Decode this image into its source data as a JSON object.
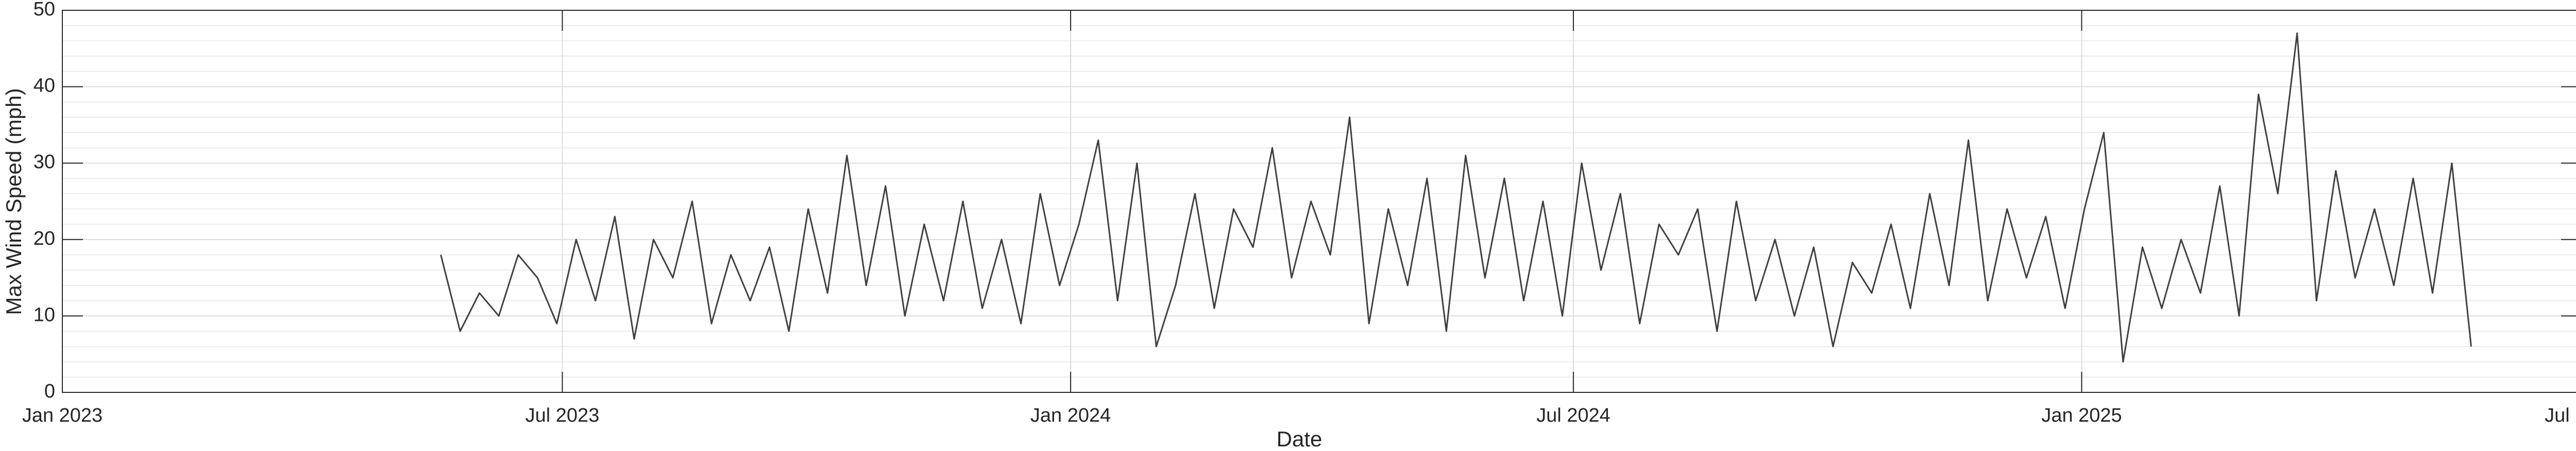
{
  "chart_data": {
    "type": "line",
    "xlabel": "Date",
    "ylabel": "Max Wind Speed (mph)",
    "xlim": [
      "2023-01-01",
      "2025-07-01"
    ],
    "xticks": [
      {
        "value": "2023-01-01",
        "label": "Jan 2023"
      },
      {
        "value": "2023-07-01",
        "label": "Jul 2023"
      },
      {
        "value": "2024-01-01",
        "label": "Jan 2024"
      },
      {
        "value": "2024-07-01",
        "label": "Jul 2024"
      },
      {
        "value": "2025-01-01",
        "label": "Jan 2025"
      },
      {
        "value": "2025-07-01",
        "label": "Jul 2025"
      }
    ],
    "ylim": [
      0,
      50
    ],
    "yticks": [
      0,
      10,
      20,
      30,
      40,
      50
    ],
    "grid": true,
    "minor_grid": true,
    "x": [
      "2023-05-18",
      "2023-05-25",
      "2023-06-01",
      "2023-06-08",
      "2023-06-15",
      "2023-06-22",
      "2023-06-29",
      "2023-07-06",
      "2023-07-13",
      "2023-07-20",
      "2023-07-27",
      "2023-08-03",
      "2023-08-10",
      "2023-08-17",
      "2023-08-24",
      "2023-08-31",
      "2023-09-07",
      "2023-09-14",
      "2023-09-21",
      "2023-09-28",
      "2023-10-05",
      "2023-10-12",
      "2023-10-19",
      "2023-10-26",
      "2023-11-02",
      "2023-11-09",
      "2023-11-16",
      "2023-11-23",
      "2023-11-30",
      "2023-12-07",
      "2023-12-14",
      "2023-12-21",
      "2023-12-28",
      "2024-01-04",
      "2024-01-11",
      "2024-01-18",
      "2024-01-25",
      "2024-02-01",
      "2024-02-08",
      "2024-02-15",
      "2024-02-22",
      "2024-02-29",
      "2024-03-07",
      "2024-03-14",
      "2024-03-21",
      "2024-03-28",
      "2024-04-04",
      "2024-04-11",
      "2024-04-18",
      "2024-04-25",
      "2024-05-02",
      "2024-05-09",
      "2024-05-16",
      "2024-05-23",
      "2024-05-30",
      "2024-06-06",
      "2024-06-13",
      "2024-06-20",
      "2024-06-27",
      "2024-07-04",
      "2024-07-11",
      "2024-07-18",
      "2024-07-25",
      "2024-08-01",
      "2024-08-08",
      "2024-08-15",
      "2024-08-22",
      "2024-08-29",
      "2024-09-05",
      "2024-09-12",
      "2024-09-19",
      "2024-09-26",
      "2024-10-03",
      "2024-10-10",
      "2024-10-17",
      "2024-10-24",
      "2024-10-31",
      "2024-11-07",
      "2024-11-14",
      "2024-11-21",
      "2024-11-28",
      "2024-12-05",
      "2024-12-12",
      "2024-12-19",
      "2024-12-26",
      "2025-01-02",
      "2025-01-09",
      "2025-01-16",
      "2025-01-23",
      "2025-01-30",
      "2025-02-06",
      "2025-02-13",
      "2025-02-20",
      "2025-02-27",
      "2025-03-06",
      "2025-03-13",
      "2025-03-20",
      "2025-03-27",
      "2025-04-03",
      "2025-04-10",
      "2025-04-17",
      "2025-04-24",
      "2025-05-01",
      "2025-05-08",
      "2025-05-15",
      "2025-05-22"
    ],
    "series": [
      {
        "color": "#404040",
        "values": [
          18,
          8,
          13,
          10,
          18,
          15,
          9,
          20,
          12,
          23,
          7,
          20,
          15,
          25,
          9,
          18,
          12,
          19,
          8,
          24,
          13,
          31,
          14,
          27,
          10,
          22,
          12,
          25,
          11,
          20,
          9,
          26,
          14,
          22,
          33,
          12,
          30,
          6,
          14,
          26,
          11,
          24,
          19,
          32,
          15,
          25,
          18,
          36,
          9,
          24,
          14,
          28,
          8,
          31,
          15,
          28,
          12,
          25,
          10,
          30,
          16,
          26,
          9,
          22,
          18,
          24,
          8,
          25,
          12,
          20,
          10,
          19,
          6,
          17,
          13,
          22,
          11,
          26,
          14,
          33,
          12,
          24,
          15,
          23,
          11,
          24,
          34,
          4,
          19,
          11,
          20,
          13,
          27,
          10,
          39,
          26,
          47,
          12,
          29,
          15,
          24,
          14,
          28,
          13,
          30,
          6
        ]
      }
    ]
  }
}
